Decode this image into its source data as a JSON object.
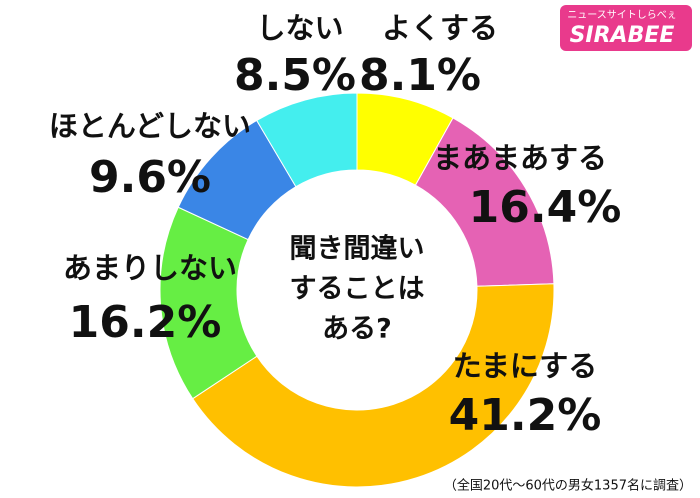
{
  "chart_data": {
    "type": "donut",
    "center_text": [
      "聞き間違い",
      "することは",
      "ある?"
    ],
    "categories": [
      "よくする",
      "まあまあする",
      "たまにする",
      "あまりしない",
      "ほとんどしない",
      "しない"
    ],
    "values": [
      8.1,
      16.4,
      41.2,
      16.2,
      9.6,
      8.5
    ],
    "value_labels": [
      "8.1%",
      "16.4%",
      "41.2%",
      "16.2%",
      "9.6%",
      "8.5%"
    ],
    "colors": [
      "#ffff00",
      "#e562b4",
      "#ffc000",
      "#66ee44",
      "#3a86e6",
      "#44eeee"
    ],
    "footnote": "（全国20代〜60代の男女1357名に調査）",
    "logo": {
      "brand": "SIRABEE",
      "tagline": "ニュースサイトしらべぇ"
    }
  }
}
